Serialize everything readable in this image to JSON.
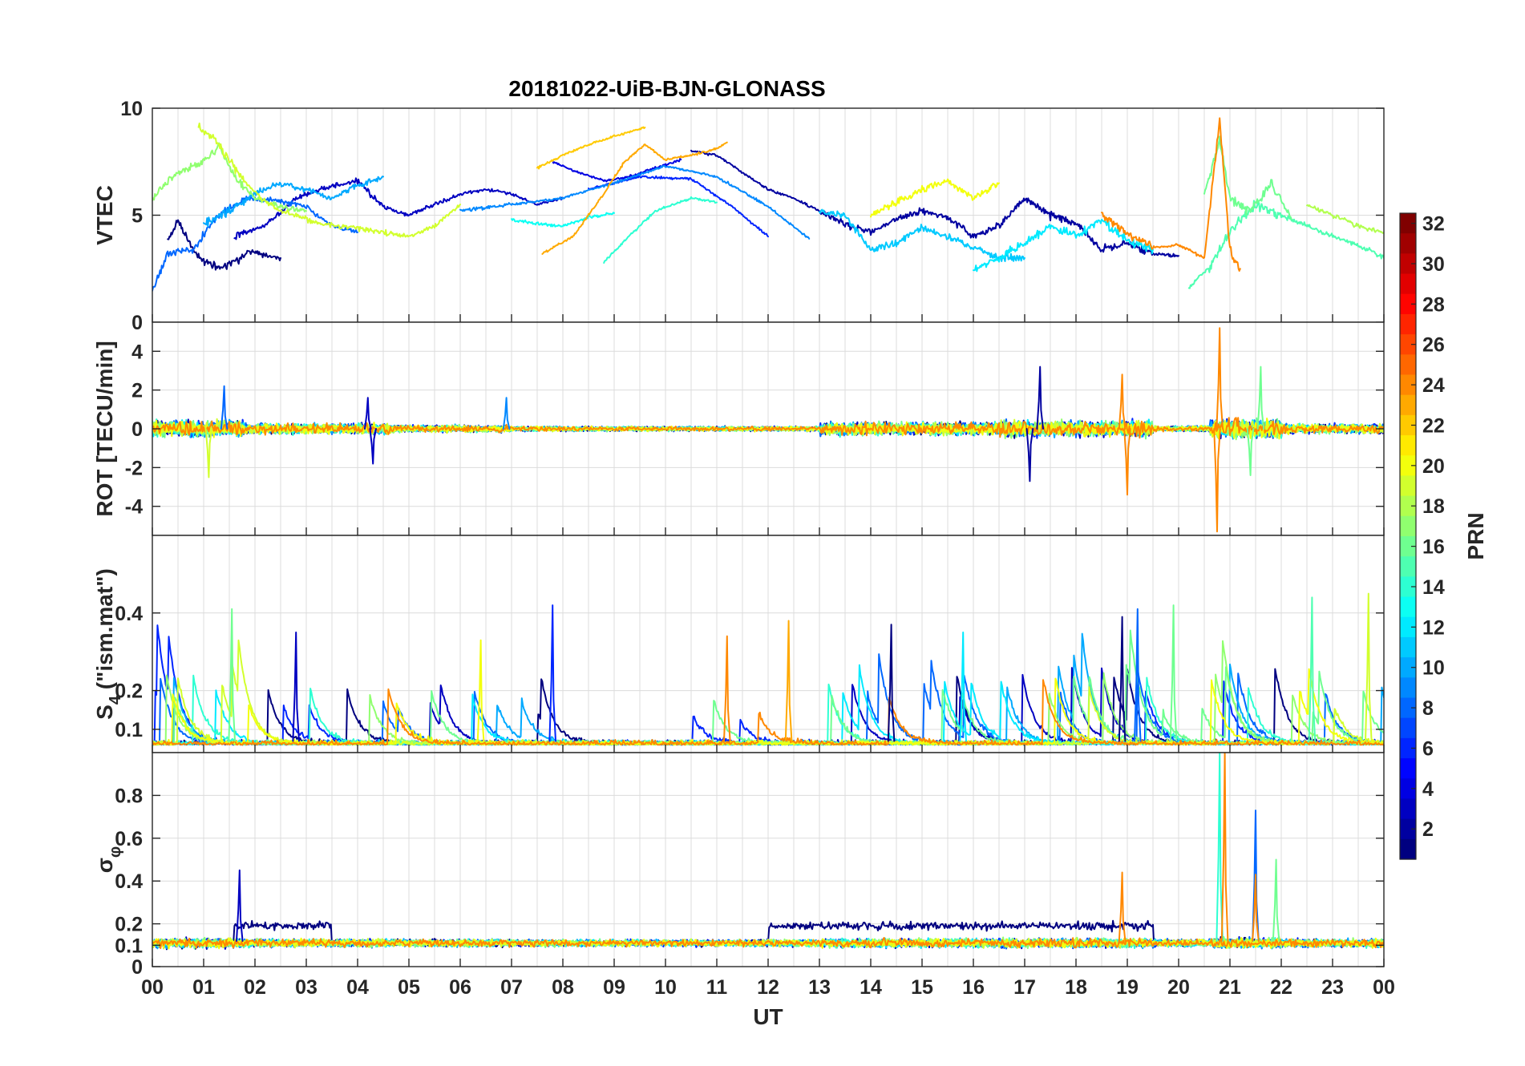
{
  "chart_data": {
    "type": "line",
    "title": "20181022-UiB-BJN-GLONASS",
    "xlabel": "UT",
    "xlim": [
      0,
      24
    ],
    "x_tick_labels": [
      "00",
      "01",
      "02",
      "03",
      "04",
      "05",
      "06",
      "07",
      "08",
      "09",
      "10",
      "11",
      "12",
      "13",
      "14",
      "15",
      "16",
      "17",
      "18",
      "19",
      "20",
      "21",
      "22",
      "23",
      "00"
    ],
    "x_tick_values": [
      0,
      1,
      2,
      3,
      4,
      5,
      6,
      7,
      8,
      9,
      10,
      11,
      12,
      13,
      14,
      15,
      16,
      17,
      18,
      19,
      20,
      21,
      22,
      23,
      24
    ],
    "panels": [
      {
        "id": "vtec",
        "ylabel": "VTEC",
        "ylim": [
          0,
          10
        ],
        "yticks": [
          0,
          5,
          10
        ],
        "ytick_labels": [
          "0",
          "5",
          "10"
        ],
        "series": [
          {
            "prn": 1,
            "x": [
              0.3,
              0.5,
              0.8,
              1.0,
              1.3,
              1.6,
              1.9,
              2.2,
              2.5
            ],
            "y": [
              3.8,
              4.8,
              3.4,
              2.8,
              2.5,
              2.8,
              3.3,
              3.1,
              3.0
            ]
          },
          {
            "prn": 3,
            "x": [
              1.6,
              2.2,
              2.8,
              3.4,
              4.0,
              4.5,
              5.0,
              5.5,
              6.0,
              6.5,
              7.0,
              7.5,
              8.0
            ],
            "y": [
              4.0,
              4.5,
              5.8,
              6.3,
              6.6,
              5.4,
              5.0,
              5.5,
              6.0,
              6.2,
              6.0,
              5.5,
              5.8
            ]
          },
          {
            "prn": 2,
            "x": [
              10.5,
              11.0,
              11.5,
              12.0,
              12.5,
              13.0,
              13.5,
              14.0,
              14.5,
              15.0,
              15.5,
              16.0,
              16.5,
              17.0,
              17.5,
              18.0,
              18.5,
              19.0,
              19.5,
              20.0
            ],
            "y": [
              8.0,
              7.8,
              7.0,
              6.2,
              5.8,
              5.2,
              4.6,
              4.2,
              4.8,
              5.2,
              4.9,
              4.0,
              4.5,
              5.8,
              5.0,
              4.6,
              3.4,
              3.7,
              3.2,
              3.1
            ]
          },
          {
            "prn": 4,
            "x": [
              7.8,
              8.3,
              8.8,
              9.3,
              9.8,
              10.3
            ],
            "y": [
              7.5,
              7.0,
              6.6,
              6.8,
              7.2,
              7.6
            ]
          },
          {
            "prn": 6,
            "x": [
              8.5,
              9.5,
              10.5,
              11.3,
              12.0
            ],
            "y": [
              6.2,
              6.8,
              6.7,
              5.4,
              4.0
            ]
          },
          {
            "prn": 8,
            "x": [
              0.0,
              0.3,
              0.8,
              1.2,
              1.8,
              2.4,
              3.0,
              3.5,
              4.0
            ],
            "y": [
              1.5,
              3.2,
              3.4,
              4.8,
              5.8,
              5.7,
              5.4,
              4.5,
              4.2
            ]
          },
          {
            "prn": 9,
            "x": [
              6.0,
              7.0,
              8.0,
              9.0,
              10.0,
              11.0,
              12.0,
              12.8
            ],
            "y": [
              5.2,
              5.5,
              5.8,
              6.5,
              7.3,
              6.8,
              5.4,
              3.9
            ]
          },
          {
            "prn": 10,
            "x": [
              1.0,
              1.5,
              2.0,
              2.5,
              3.0,
              3.5,
              4.0,
              4.5
            ],
            "y": [
              4.6,
              5.2,
              6.0,
              6.5,
              6.2,
              5.8,
              6.4,
              6.8
            ]
          },
          {
            "prn": 11,
            "x": [
              13.0,
              13.5,
              14.0,
              14.5,
              15.0,
              15.5,
              16.0,
              16.5,
              17.0
            ],
            "y": [
              5.2,
              5.0,
              3.4,
              3.7,
              4.4,
              4.0,
              3.5,
              3.0,
              3.0
            ]
          },
          {
            "prn": 12,
            "x": [
              16.0,
              16.5,
              17.0,
              17.5,
              18.0,
              18.5,
              19.0,
              19.5
            ],
            "y": [
              2.5,
              3.0,
              3.7,
              4.5,
              4.0,
              4.8,
              3.8,
              3.4
            ]
          },
          {
            "prn": 13,
            "x": [
              7.0,
              7.5,
              8.0,
              8.5,
              9.0
            ],
            "y": [
              4.8,
              4.6,
              4.5,
              4.9,
              5.1
            ]
          },
          {
            "prn": 14,
            "x": [
              8.8,
              9.2,
              9.8,
              10.5,
              11.0
            ],
            "y": [
              2.8,
              3.8,
              5.2,
              5.8,
              5.6
            ]
          },
          {
            "prn": 15,
            "x": [
              20.2,
              20.6,
              21.0,
              21.5,
              22.0,
              22.5,
              23.0,
              23.5,
              24.0
            ],
            "y": [
              1.6,
              2.6,
              4.2,
              5.5,
              5.0,
              4.5,
              4.0,
              3.6,
              3.0
            ]
          },
          {
            "prn": 16,
            "x": [
              20.5,
              20.8,
              21.0,
              21.4,
              21.8,
              22.2
            ],
            "y": [
              6.0,
              8.5,
              5.8,
              5.2,
              6.5,
              4.8
            ]
          },
          {
            "prn": 17,
            "x": [
              0.0,
              0.5,
              1.0,
              1.3,
              1.6,
              2.0,
              2.5,
              3.0
            ],
            "y": [
              5.8,
              7.0,
              7.5,
              8.2,
              6.8,
              5.8,
              5.4,
              5.2
            ]
          },
          {
            "prn": 18,
            "x": [
              22.5,
              23.0,
              23.5,
              24.0
            ],
            "y": [
              5.5,
              5.0,
              4.5,
              4.2
            ]
          },
          {
            "prn": 19,
            "x": [
              0.9,
              1.2,
              1.5,
              1.8,
              2.1,
              2.5,
              3.0,
              3.5,
              4.0,
              4.5,
              5.0,
              5.5,
              6.0
            ],
            "y": [
              9.2,
              8.6,
              7.6,
              6.6,
              5.8,
              5.2,
              4.8,
              4.5,
              4.4,
              4.2,
              4.0,
              4.5,
              5.5
            ]
          },
          {
            "prn": 20,
            "x": [
              14.0,
              14.5,
              15.0,
              15.5,
              16.0,
              16.5
            ],
            "y": [
              5.0,
              5.6,
              6.2,
              6.6,
              5.8,
              6.5
            ]
          },
          {
            "prn": 22,
            "x": [
              7.5,
              8.0,
              8.5,
              9.0,
              9.6
            ],
            "y": [
              7.2,
              7.8,
              8.3,
              8.7,
              9.1
            ]
          },
          {
            "prn": 23,
            "x": [
              7.6,
              8.2,
              8.8,
              9.2,
              9.6,
              10.0,
              10.5,
              11.0,
              11.2
            ],
            "y": [
              3.2,
              4.0,
              6.0,
              7.5,
              8.3,
              7.6,
              7.8,
              8.1,
              8.4
            ]
          },
          {
            "prn": 24,
            "x": [
              18.5,
              19.0,
              19.5,
              20.0,
              20.5,
              20.8,
              21.0,
              21.2
            ],
            "y": [
              5.0,
              4.2,
              3.5,
              3.6,
              3.0,
              9.5,
              3.4,
              2.5
            ]
          }
        ]
      },
      {
        "id": "rot",
        "ylabel": "ROT [TECU/min]",
        "ylim": [
          -5.5,
          5.5
        ],
        "yticks": [
          -4,
          -2,
          0,
          2,
          4
        ],
        "ytick_labels": [
          "-4",
          "-2",
          "0",
          "2",
          "4"
        ],
        "spikes": [
          {
            "prn": 19,
            "x": 1.1,
            "y": -2.5
          },
          {
            "prn": 8,
            "x": 1.4,
            "y": 2.2
          },
          {
            "prn": 3,
            "x": 4.2,
            "y": 1.6
          },
          {
            "prn": 3,
            "x": 4.3,
            "y": -1.8
          },
          {
            "prn": 9,
            "x": 6.9,
            "y": 1.6
          },
          {
            "prn": 2,
            "x": 17.3,
            "y": 3.2
          },
          {
            "prn": 2,
            "x": 17.1,
            "y": -2.7
          },
          {
            "prn": 24,
            "x": 18.9,
            "y": 2.8
          },
          {
            "prn": 24,
            "x": 19.0,
            "y": -3.4
          },
          {
            "prn": 24,
            "x": 20.8,
            "y": 5.2
          },
          {
            "prn": 24,
            "x": 20.75,
            "y": -5.3
          },
          {
            "prn": 16,
            "x": 21.6,
            "y": 3.2
          },
          {
            "prn": 16,
            "x": 21.4,
            "y": -2.4
          }
        ]
      },
      {
        "id": "s4",
        "ylabel": "S4 (\"ism.mat\")",
        "ylabel_main": "S",
        "ylabel_sub": "4",
        "ylabel_rest": " (\"ism.mat\")",
        "ylim": [
          0.04,
          0.6
        ],
        "yticks": [
          0.1,
          0.2,
          0.4
        ],
        "ytick_labels": [
          "0.1",
          "0.2",
          "0.4"
        ],
        "spikes": [
          {
            "prn": 16,
            "x": 1.55,
            "y": 0.41
          },
          {
            "prn": 3,
            "x": 2.8,
            "y": 0.35
          },
          {
            "prn": 20,
            "x": 6.4,
            "y": 0.33
          },
          {
            "prn": 6,
            "x": 7.8,
            "y": 0.42
          },
          {
            "prn": 24,
            "x": 11.2,
            "y": 0.34
          },
          {
            "prn": 23,
            "x": 12.4,
            "y": 0.38
          },
          {
            "prn": 1,
            "x": 14.4,
            "y": 0.37
          },
          {
            "prn": 12,
            "x": 15.8,
            "y": 0.35
          },
          {
            "prn": 1,
            "x": 18.9,
            "y": 0.39
          },
          {
            "prn": 8,
            "x": 19.2,
            "y": 0.41
          },
          {
            "prn": 16,
            "x": 19.9,
            "y": 0.42
          },
          {
            "prn": 15,
            "x": 22.6,
            "y": 0.44
          },
          {
            "prn": 19,
            "x": 23.7,
            "y": 0.45
          }
        ]
      },
      {
        "id": "sigma",
        "ylabel": "σ φ",
        "ylabel_main": "σ",
        "ylabel_sub": "φ",
        "ylim": [
          0,
          1
        ],
        "yticks": [
          0,
          0.1,
          0.2,
          0.4,
          0.6,
          0.8
        ],
        "ytick_labels": [
          "0",
          "0.1",
          "0.2",
          "0.4",
          "0.6",
          "0.8"
        ],
        "spikes": [
          {
            "prn": 3,
            "x": 1.7,
            "y": 0.45
          },
          {
            "prn": 24,
            "x": 18.9,
            "y": 0.44
          },
          {
            "prn": 14,
            "x": 20.8,
            "y": 1.0
          },
          {
            "prn": 24,
            "x": 20.9,
            "y": 1.0
          },
          {
            "prn": 8,
            "x": 21.5,
            "y": 0.73
          },
          {
            "prn": 24,
            "x": 21.5,
            "y": 0.43
          },
          {
            "prn": 16,
            "x": 21.9,
            "y": 0.5
          }
        ]
      }
    ],
    "colorbar": {
      "label": "PRN",
      "colormap": "jet",
      "clim": [
        1,
        32
      ],
      "ticks": [
        2,
        4,
        6,
        8,
        10,
        12,
        14,
        16,
        18,
        20,
        22,
        24,
        26,
        28,
        30,
        32
      ],
      "tick_labels": [
        "2",
        "4",
        "6",
        "8",
        "10",
        "12",
        "14",
        "16",
        "18",
        "20",
        "22",
        "24",
        "26",
        "28",
        "30",
        "32"
      ]
    },
    "grid": true
  }
}
